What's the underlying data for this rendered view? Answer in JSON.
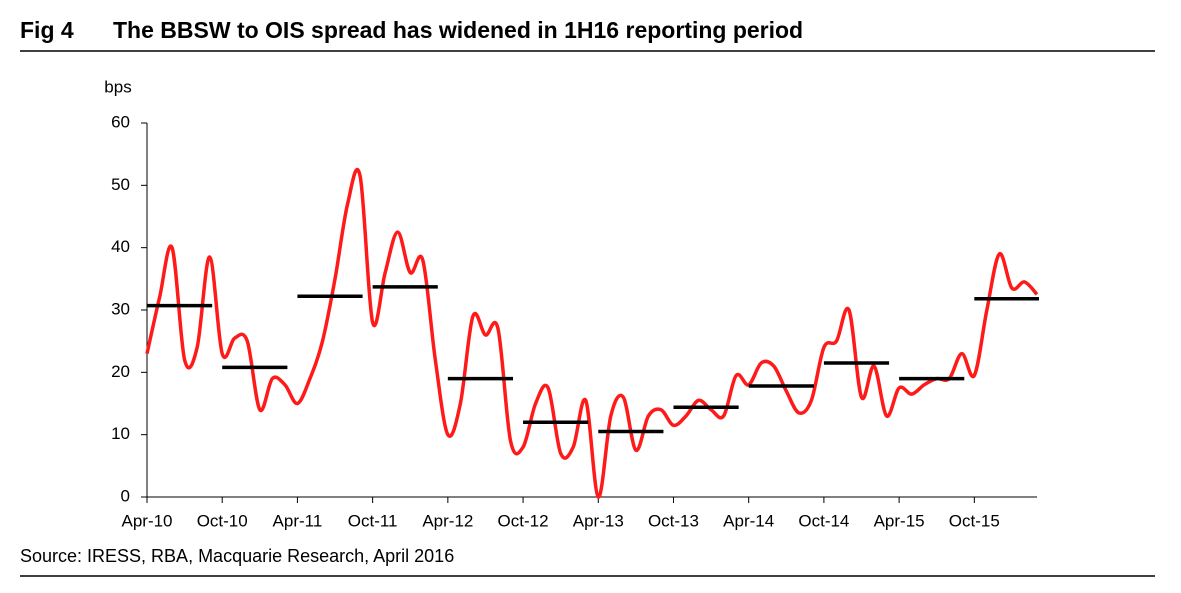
{
  "chart_data": {
    "type": "line",
    "figure_label": "Fig 4",
    "title": "The BBSW to OIS spread has widened in 1H16 reporting period",
    "y_label": "bps",
    "source": "Source: IRESS, RBA, Macquarie Research, April 2016",
    "x": [
      0,
      1,
      2,
      3,
      4,
      5,
      6,
      7,
      8,
      9,
      10,
      11,
      12,
      13,
      14,
      15,
      16,
      17,
      18,
      19,
      20,
      21,
      22,
      23,
      24,
      25,
      26,
      27,
      28,
      29,
      30,
      31,
      32,
      33,
      34,
      35,
      36,
      37,
      38,
      39,
      40,
      41,
      42,
      43,
      44,
      45,
      46,
      47,
      48,
      49,
      50,
      51,
      52,
      53,
      54,
      55,
      56,
      57,
      58,
      59,
      60,
      61,
      62,
      63,
      64,
      65,
      66,
      67,
      68,
      69,
      70,
      71
    ],
    "series": [
      {
        "color": "#ff1a1a",
        "values": [
          23,
          32,
          40,
          22,
          24,
          38.5,
          23,
          25.5,
          25,
          14,
          19,
          18,
          15,
          19,
          25,
          35,
          47,
          51.5,
          28,
          36,
          42.5,
          36,
          38,
          22,
          10,
          15,
          29,
          26,
          27,
          9,
          8,
          15,
          17.5,
          7,
          8,
          15.5,
          0,
          13,
          16,
          7.5,
          13,
          14,
          11.5,
          13,
          15.5,
          14,
          13,
          19.5,
          18,
          21.5,
          21,
          17,
          13.5,
          15.5,
          24,
          25,
          30,
          16,
          21,
          13,
          17.5,
          16.5,
          18,
          19,
          19,
          23,
          19.5,
          30,
          39,
          33.5,
          34.5,
          32.5
        ]
      }
    ],
    "averages": {
      "color": "#000000",
      "x": [
        0,
        6,
        12,
        18,
        24,
        30,
        36,
        42,
        48,
        54,
        60,
        66
      ],
      "values": [
        30.7,
        20.8,
        32.2,
        33.7,
        19,
        12,
        10.5,
        14.4,
        17.8,
        21.5,
        19,
        31.8
      ]
    },
    "xlim": [
      0,
      71
    ],
    "xticks": [
      {
        "value": 0,
        "label": "Apr-10"
      },
      {
        "value": 6,
        "label": "Oct-10"
      },
      {
        "value": 12,
        "label": "Apr-11"
      },
      {
        "value": 18,
        "label": "Oct-11"
      },
      {
        "value": 24,
        "label": "Apr-12"
      },
      {
        "value": 30,
        "label": "Oct-12"
      },
      {
        "value": 36,
        "label": "Apr-13"
      },
      {
        "value": 42,
        "label": "Oct-13"
      },
      {
        "value": 48,
        "label": "Apr-14"
      },
      {
        "value": 54,
        "label": "Oct-14"
      },
      {
        "value": 60,
        "label": "Apr-15"
      },
      {
        "value": 66,
        "label": "Oct-15"
      }
    ],
    "ylim": [
      0,
      60
    ],
    "yticks": [
      0,
      10,
      20,
      30,
      40,
      50,
      60
    ],
    "grid": false
  }
}
